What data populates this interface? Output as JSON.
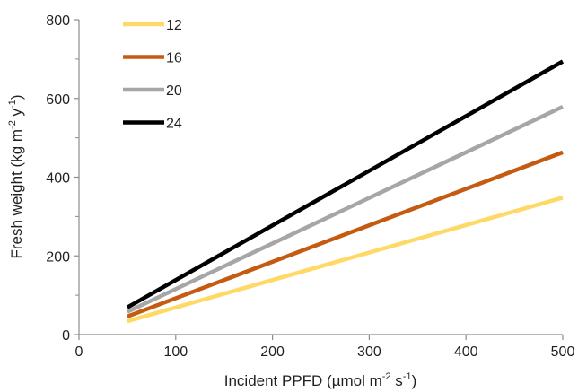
{
  "chart_data": {
    "type": "line",
    "title": "",
    "xlabel": {
      "base": "Incident PPFD (µmol m",
      "sup1": "-2",
      "mid": " s",
      "sup2": "-1",
      "end": ")"
    },
    "ylabel": {
      "base": "Fresh weight (kg m",
      "sup1": "-2",
      "mid": " y",
      "sup2": "-1",
      "end": ")"
    },
    "xlim": [
      0,
      500
    ],
    "ylim": [
      0,
      800
    ],
    "xticks": [
      0,
      100,
      200,
      300,
      400,
      500
    ],
    "yticks": [
      0,
      200,
      400,
      600,
      800
    ],
    "xtick_labels": [
      "0",
      "100",
      "200",
      "300",
      "400",
      "500"
    ],
    "ytick_labels": [
      "0",
      "200",
      "400",
      "600",
      "800"
    ],
    "grid": false,
    "legend_position": "top-left",
    "series": [
      {
        "name": "12",
        "color": "#ffd966",
        "x": [
          50,
          500
        ],
        "y": [
          34,
          348
        ]
      },
      {
        "name": "16",
        "color": "#c55a11",
        "x": [
          50,
          500
        ],
        "y": [
          46,
          463
        ]
      },
      {
        "name": "20",
        "color": "#a6a6a6",
        "x": [
          50,
          500
        ],
        "y": [
          58,
          579
        ]
      },
      {
        "name": "24",
        "color": "#000000",
        "x": [
          50,
          500
        ],
        "y": [
          69,
          694
        ]
      }
    ]
  }
}
